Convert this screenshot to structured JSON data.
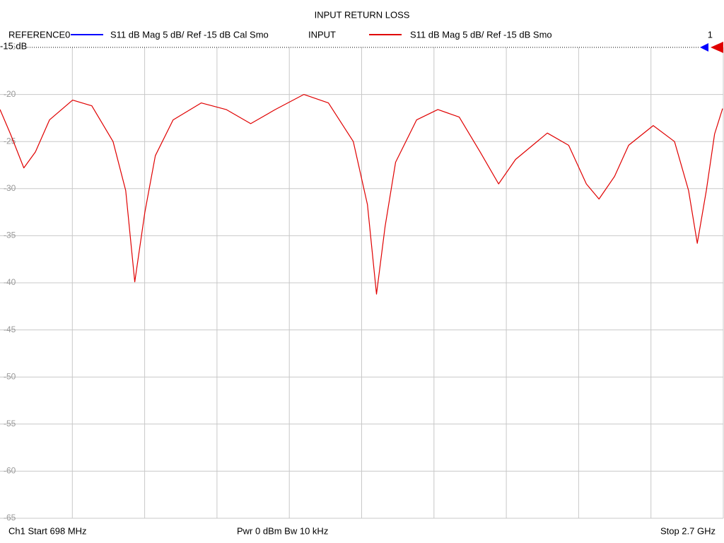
{
  "chart_data": {
    "type": "line",
    "title": "INPUT RETURN LOSS",
    "reference_trace": {
      "name": "REFERENCE0",
      "description": "S11  dB Mag  5 dB/ Ref -15 dB  Cal Smo",
      "color": "#0000ff"
    },
    "series": [
      {
        "name": "INPUT",
        "description": "S11  dB Mag  5 dB/ Ref -15 dB  Smo",
        "color": "#e00000",
        "values": [
          -21.6,
          -24.2,
          -27.8,
          -26.1,
          -22.7,
          -20.6,
          -21.2,
          -25.0,
          -30.2,
          -39.9,
          -32.5,
          -26.5,
          -22.7,
          -20.9,
          -21.6,
          -23.1,
          -21.6,
          -20.0,
          -20.9,
          -25.0,
          -31.7,
          -41.2,
          -34.0,
          -27.2,
          -22.7,
          -21.6,
          -22.4,
          -26.1,
          -29.5,
          -26.9,
          -24.1,
          -25.4,
          -29.5,
          -31.1,
          -28.7,
          -25.4,
          -23.3,
          -25.0,
          -30.2,
          -35.8,
          -30.2,
          -24.2,
          -21.5
        ]
      }
    ],
    "x": [
      698,
      727,
      764,
      796,
      835,
      899,
      952,
      1011,
      1046,
      1071,
      1099,
      1128,
      1177,
      1255,
      1324,
      1392,
      1460,
      1539,
      1607,
      1676,
      1715,
      1740,
      1764,
      1793,
      1851,
      1910,
      1969,
      2027,
      2078,
      2125,
      2213,
      2272,
      2321,
      2356,
      2399,
      2438,
      2506,
      2565,
      2604,
      2628,
      2653,
      2676,
      2698
    ],
    "xlim": [
      698,
      2700
    ],
    "xticks": [
      898.2,
      1098.4,
      1298.6,
      1498.8,
      1699,
      1899.2,
      2099.4,
      2299.6,
      2499.8
    ],
    "ylim": [
      -15,
      -65
    ],
    "yticks": [
      -15,
      -20,
      -25,
      -30,
      -35,
      -40,
      -45,
      -50,
      -55,
      -60,
      -65
    ],
    "reference_label": "-15 dB",
    "channel_marker": "1",
    "start_label": "Ch1  Start  698 MHz",
    "power_label": "Pwr  0 dBm  Bw  10 kHz",
    "stop_label": "Stop  2.7 GHz",
    "grid": true
  }
}
